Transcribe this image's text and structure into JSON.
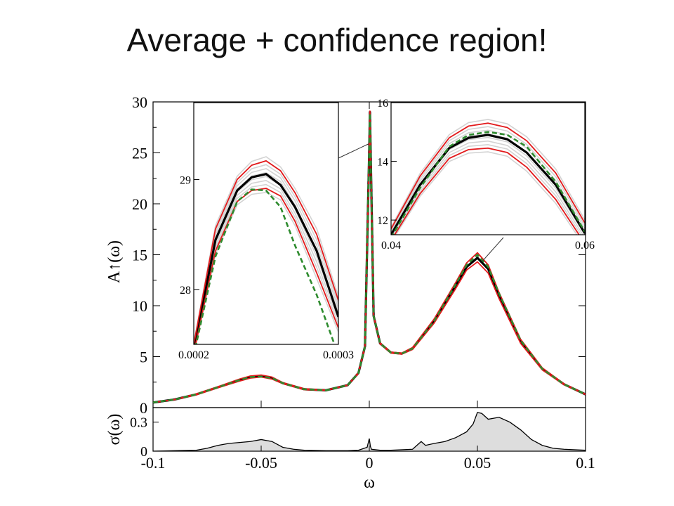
{
  "slide": {
    "title": "Average + confidence region!"
  },
  "colors": {
    "average": "#000000",
    "bounds": "#e41a1c",
    "exact": "#2e8b2e",
    "samples": "#d3d3d3",
    "sigma_fill": "#dddddd"
  },
  "chart_data": [
    {
      "id": "main",
      "type": "line",
      "xlabel": "ω",
      "ylabel": "A↑(ω)",
      "xlim": [
        -0.1,
        0.1
      ],
      "ylim": [
        0,
        30
      ],
      "xticks": [
        "-0.1",
        "-0.05",
        "0",
        "0.05",
        "0.1"
      ],
      "yticks": [
        "0",
        "5",
        "10",
        "15",
        "20",
        "25",
        "30"
      ],
      "x": [
        -0.1,
        -0.09,
        -0.08,
        -0.07,
        -0.06,
        -0.055,
        -0.05,
        -0.045,
        -0.04,
        -0.03,
        -0.02,
        -0.01,
        -0.005,
        -0.002,
        0,
        0.0003,
        0.002,
        0.005,
        0.01,
        0.015,
        0.02,
        0.03,
        0.04,
        0.045,
        0.05,
        0.055,
        0.06,
        0.07,
        0.08,
        0.09,
        0.1
      ],
      "series": [
        {
          "role": "average",
          "values": [
            0.5,
            0.8,
            1.3,
            2.0,
            2.7,
            3.0,
            3.1,
            2.9,
            2.4,
            1.8,
            1.7,
            2.2,
            3.4,
            6.0,
            25.5,
            29.0,
            9.0,
            6.3,
            5.4,
            5.3,
            5.8,
            8.5,
            12.0,
            13.8,
            14.7,
            13.6,
            11.0,
            6.5,
            3.8,
            2.3,
            1.3
          ]
        },
        {
          "role": "upper",
          "values": [
            0.5,
            0.8,
            1.35,
            2.05,
            2.8,
            3.1,
            3.2,
            3.0,
            2.45,
            1.85,
            1.72,
            2.22,
            3.45,
            6.1,
            25.8,
            29.1,
            9.1,
            6.35,
            5.45,
            5.35,
            5.9,
            8.7,
            12.3,
            14.2,
            15.2,
            14.0,
            11.3,
            6.7,
            3.9,
            2.35,
            1.32
          ]
        },
        {
          "role": "lower",
          "values": [
            0.5,
            0.78,
            1.25,
            1.95,
            2.6,
            2.9,
            3.0,
            2.8,
            2.35,
            1.75,
            1.68,
            2.18,
            3.35,
            5.9,
            25.2,
            28.9,
            8.9,
            6.25,
            5.35,
            5.25,
            5.7,
            8.3,
            11.7,
            13.5,
            14.3,
            13.2,
            10.7,
            6.3,
            3.7,
            2.25,
            1.28
          ]
        },
        {
          "role": "exact",
          "values": [
            0.5,
            0.8,
            1.3,
            2.0,
            2.7,
            3.0,
            3.05,
            2.9,
            2.4,
            1.8,
            1.7,
            2.2,
            3.4,
            6.0,
            25.5,
            28.9,
            9.0,
            6.3,
            5.4,
            5.3,
            5.8,
            8.5,
            12.1,
            14.0,
            15.0,
            13.8,
            11.2,
            6.6,
            3.8,
            2.3,
            1.3
          ]
        }
      ]
    },
    {
      "id": "sigma",
      "type": "area",
      "ylabel": "σ(ω)",
      "xlim": [
        -0.1,
        0.1
      ],
      "ylim": [
        0,
        0.45
      ],
      "yticks": [
        "0",
        "0.3"
      ],
      "x": [
        -0.1,
        -0.09,
        -0.08,
        -0.075,
        -0.07,
        -0.065,
        -0.06,
        -0.055,
        -0.05,
        -0.045,
        -0.04,
        -0.035,
        -0.03,
        -0.02,
        -0.01,
        -0.005,
        -0.001,
        0,
        0.0005,
        0.001,
        0.005,
        0.01,
        0.02,
        0.022,
        0.024,
        0.026,
        0.03,
        0.035,
        0.04,
        0.045,
        0.048,
        0.05,
        0.052,
        0.055,
        0.06,
        0.065,
        0.07,
        0.075,
        0.08,
        0.085,
        0.09,
        0.1
      ],
      "values": [
        0.0,
        0.005,
        0.01,
        0.03,
        0.06,
        0.08,
        0.09,
        0.1,
        0.12,
        0.1,
        0.04,
        0.02,
        0.01,
        0.005,
        0.005,
        0.01,
        0.04,
        0.13,
        0.05,
        0.02,
        0.01,
        0.01,
        0.02,
        0.06,
        0.1,
        0.06,
        0.08,
        0.1,
        0.14,
        0.2,
        0.28,
        0.4,
        0.39,
        0.33,
        0.35,
        0.3,
        0.22,
        0.12,
        0.06,
        0.03,
        0.02,
        0.01
      ]
    },
    {
      "id": "inset-left",
      "type": "line",
      "xlim": [
        0.0002,
        0.0003
      ],
      "ylim": [
        27.5,
        29.7
      ],
      "xticks": [
        "0.0002",
        "0.0003"
      ],
      "yticks": [
        "28",
        "29"
      ],
      "x": [
        0.0002,
        0.000215,
        0.00023,
        0.00024,
        0.00025,
        0.00026,
        0.00027,
        0.000285,
        0.0003
      ],
      "series": [
        {
          "role": "average",
          "values": [
            27.45,
            28.45,
            28.9,
            29.02,
            29.05,
            28.95,
            28.75,
            28.35,
            27.75
          ]
        },
        {
          "role": "upper",
          "values": [
            27.5,
            28.55,
            29.0,
            29.13,
            29.17,
            29.08,
            28.88,
            28.5,
            27.9
          ]
        },
        {
          "role": "lower",
          "values": [
            27.42,
            28.35,
            28.8,
            28.9,
            28.92,
            28.85,
            28.62,
            28.15,
            27.65
          ]
        },
        {
          "role": "exact",
          "values": [
            27.4,
            28.3,
            28.8,
            28.91,
            28.9,
            28.75,
            28.4,
            27.95,
            27.4
          ]
        }
      ]
    },
    {
      "id": "inset-right",
      "type": "line",
      "xlim": [
        0.04,
        0.06
      ],
      "ylim": [
        11.5,
        16.0
      ],
      "xticks": [
        "0.04",
        "0.06"
      ],
      "yticks": [
        "12",
        "14",
        "16"
      ],
      "x": [
        0.04,
        0.043,
        0.046,
        0.048,
        0.05,
        0.052,
        0.054,
        0.057,
        0.06
      ],
      "series": [
        {
          "role": "average",
          "values": [
            11.5,
            13.2,
            14.45,
            14.8,
            14.9,
            14.75,
            14.3,
            13.2,
            11.55
          ]
        },
        {
          "role": "upper",
          "values": [
            11.7,
            13.5,
            14.8,
            15.2,
            15.3,
            15.15,
            14.7,
            13.6,
            11.9
          ]
        },
        {
          "role": "lower",
          "values": [
            11.3,
            12.9,
            14.1,
            14.4,
            14.45,
            14.3,
            13.8,
            12.7,
            11.2
          ]
        },
        {
          "role": "exact",
          "values": [
            11.4,
            13.1,
            14.5,
            14.9,
            15.0,
            14.9,
            14.5,
            13.3,
            11.6
          ]
        }
      ]
    }
  ]
}
